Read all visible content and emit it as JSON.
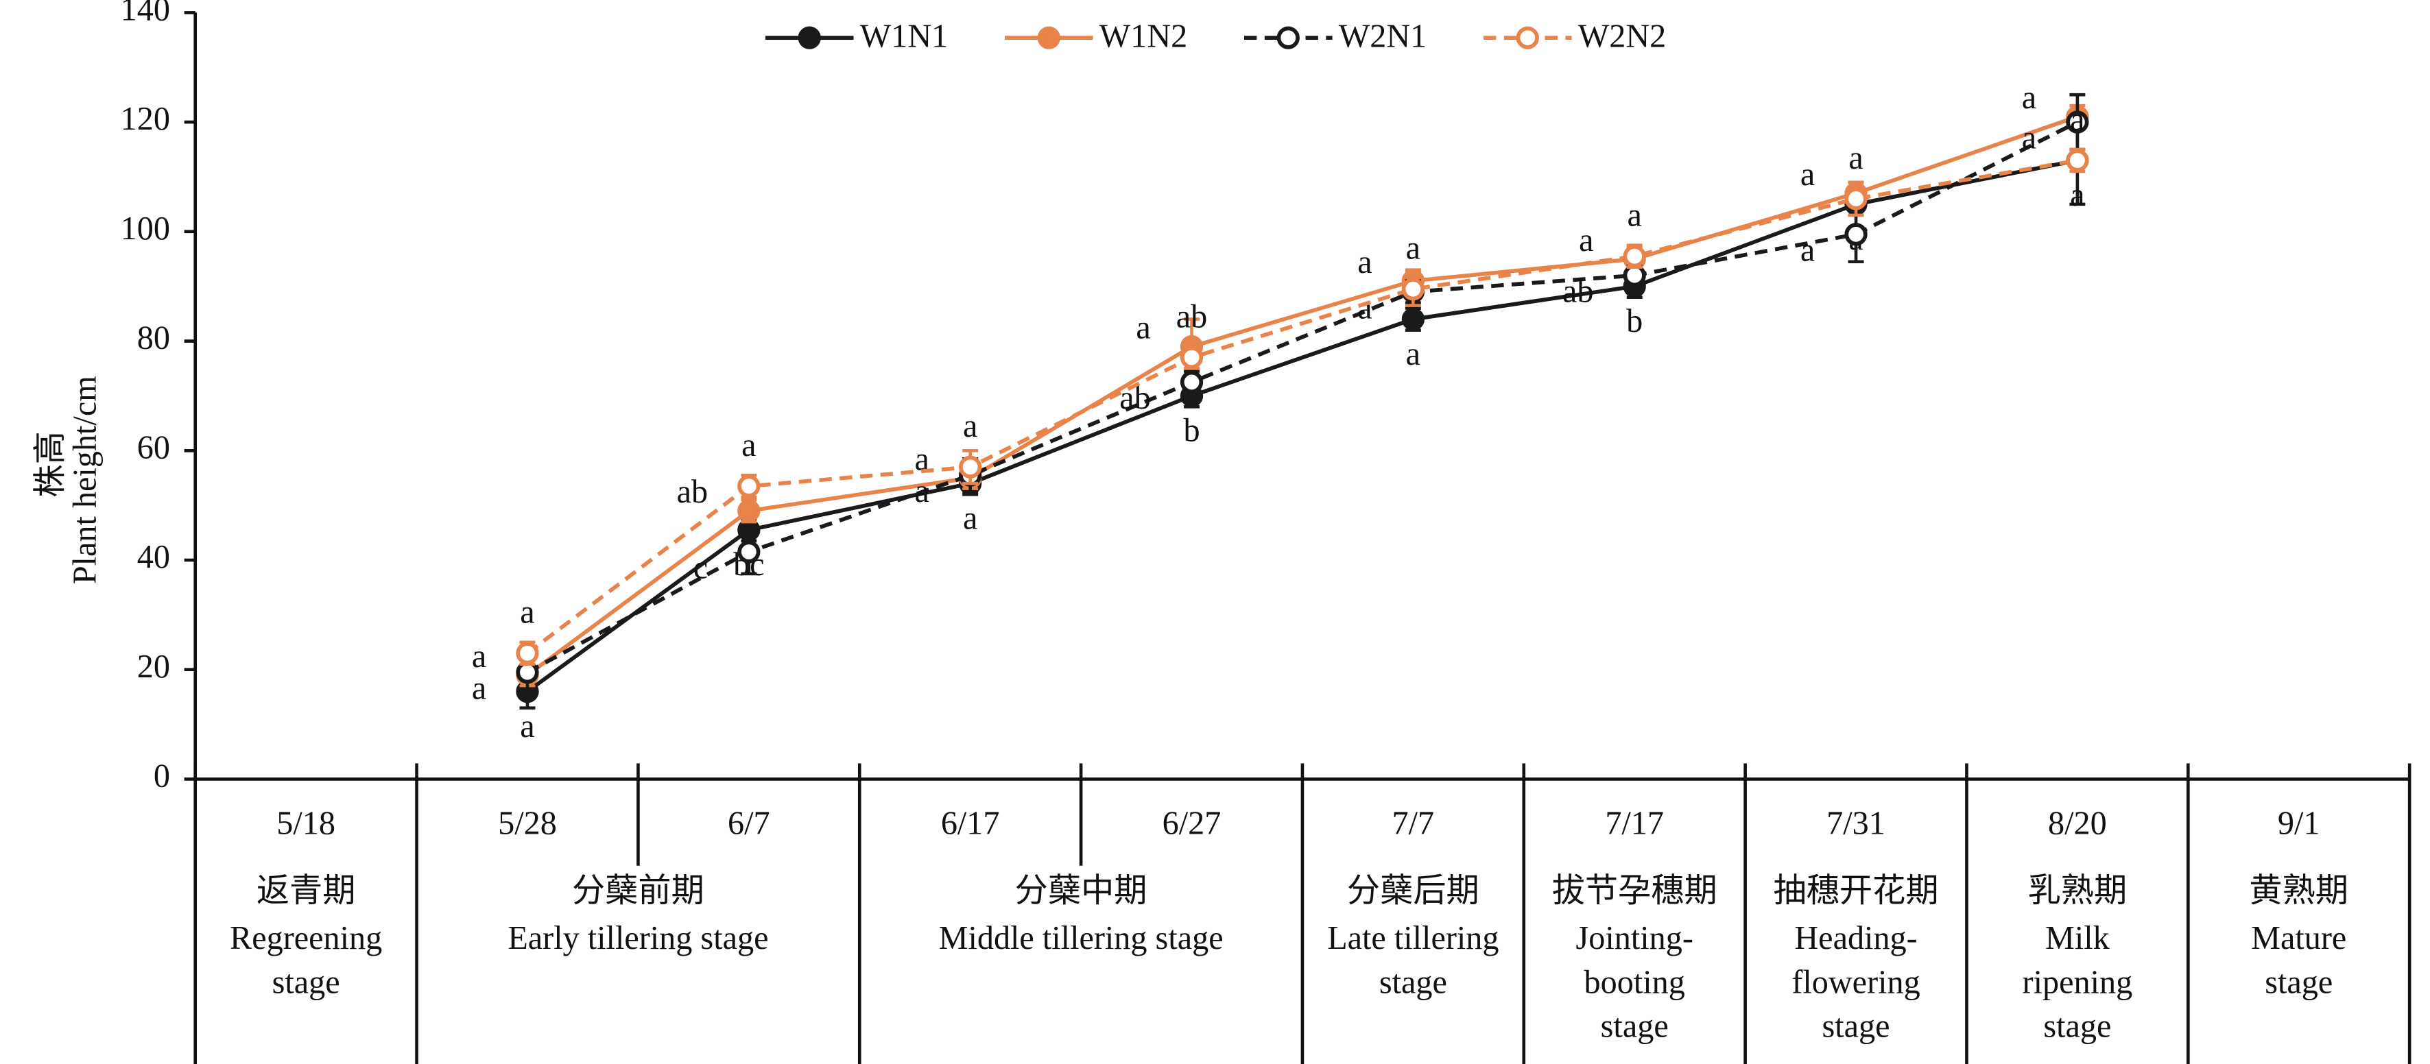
{
  "chart_data": {
    "type": "line",
    "y_label_zh": "株高",
    "y_label": "Plant height/cm",
    "categories": [
      "5/18",
      "5/28",
      "6/7",
      "6/17",
      "6/27",
      "7/7",
      "7/17",
      "7/31",
      "8/20",
      "9/1"
    ],
    "ylim": [
      0,
      140
    ],
    "yticks": [
      0,
      20,
      40,
      60,
      80,
      100,
      120,
      140
    ],
    "series": [
      {
        "name": "W1N1",
        "color": "#1a1a1a",
        "dashed": false,
        "marker": "filled",
        "values": [
          null,
          16,
          45.5,
          54,
          70,
          84,
          90,
          105,
          113,
          null
        ],
        "errors": [
          null,
          3,
          2,
          2,
          2,
          2,
          2,
          2,
          8,
          null
        ],
        "letters": [
          null,
          "a",
          "bc",
          "a",
          "b",
          "a",
          "b",
          "a",
          "a",
          null
        ]
      },
      {
        "name": "W1N2",
        "color": "#e8834a",
        "dashed": false,
        "marker": "filled",
        "values": [
          null,
          19,
          49,
          55,
          79,
          91,
          95,
          107,
          121,
          null
        ],
        "errors": [
          null,
          2,
          2,
          2,
          5,
          2,
          2,
          2,
          2,
          null
        ],
        "letters": [
          null,
          "a",
          "ab",
          "a",
          "a",
          "a",
          "a",
          "a",
          "a",
          null
        ]
      },
      {
        "name": "W2N1",
        "color": "#1a1a1a",
        "dashed": true,
        "marker": "open",
        "values": [
          null,
          19.5,
          41.5,
          55.5,
          72.5,
          89,
          92,
          99.5,
          120,
          null
        ],
        "errors": [
          null,
          3,
          4,
          3,
          2,
          2,
          2,
          5,
          5,
          null
        ],
        "letters": [
          null,
          "a",
          "c",
          "a",
          "ab",
          "a",
          "ab",
          "a",
          "a",
          null
        ]
      },
      {
        "name": "W2N2",
        "color": "#e8834a",
        "dashed": true,
        "marker": "open",
        "values": [
          null,
          23,
          53.5,
          57,
          77,
          89.5,
          95.5,
          106,
          113,
          null
        ],
        "errors": [
          null,
          2,
          2,
          3,
          2,
          3,
          2,
          3,
          2,
          null
        ],
        "letters": [
          null,
          "a",
          "a",
          "a",
          "ab",
          "a",
          "a",
          "a",
          "a",
          null
        ]
      }
    ],
    "stages": [
      {
        "zh": "返青期",
        "en": [
          "Regreening",
          "stage"
        ]
      },
      {
        "zh": "分蘖前期",
        "en": [
          "Early tillering stage"
        ]
      },
      {
        "zh": "分蘖中期",
        "en": [
          "Middle tillering stage"
        ]
      },
      {
        "zh": "分蘖后期",
        "en": [
          "Late tillering",
          "stage"
        ]
      },
      {
        "zh": "拔节孕穗期",
        "en": [
          "Jointing-",
          "booting",
          "stage"
        ]
      },
      {
        "zh": "抽穗开花期",
        "en": [
          "Heading-",
          "flowering",
          "stage"
        ]
      },
      {
        "zh": "乳熟期",
        "en": [
          "Milk",
          "ripening",
          "stage"
        ]
      },
      {
        "zh": "黄熟期",
        "en": [
          "Mature",
          "stage"
        ]
      }
    ]
  }
}
